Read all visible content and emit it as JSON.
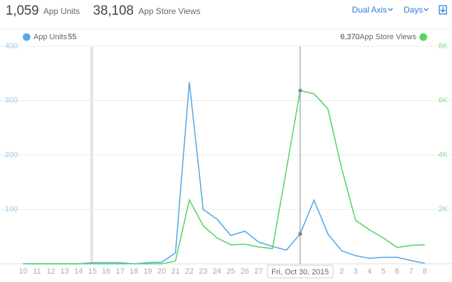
{
  "header": {
    "totals": [
      {
        "value": "1,059",
        "label": "App Units"
      },
      {
        "value": "38,108",
        "label": "App Store Views"
      }
    ],
    "controls": [
      "Dual Axis",
      "Days"
    ]
  },
  "chart_data": {
    "type": "line",
    "categories": [
      "10",
      "11",
      "12",
      "13",
      "14",
      "15",
      "16",
      "17",
      "18",
      "19",
      "20",
      "21",
      "22",
      "23",
      "24",
      "25",
      "26",
      "27",
      null,
      null,
      "Fri, Oct 30, 2015",
      null,
      null,
      "2",
      "3",
      "4",
      "5",
      "6",
      "7",
      "8"
    ],
    "series": [
      {
        "name": "App Units",
        "color": "#5aaae6",
        "values": [
          0,
          0,
          0,
          0,
          0,
          2,
          2,
          2,
          0,
          2,
          3,
          20,
          334,
          100,
          82,
          52,
          60,
          40,
          32,
          25,
          55,
          117,
          55,
          24,
          15,
          10,
          12,
          12,
          6,
          1
        ]
      },
      {
        "name": "App Store Views",
        "color": "#5ad46a",
        "axis": "y2",
        "values": [
          0,
          0,
          0,
          0,
          0,
          0,
          0,
          0,
          0,
          0,
          0,
          100,
          2350,
          1400,
          950,
          700,
          720,
          620,
          560,
          3450,
          6370,
          6250,
          5700,
          3500,
          1600,
          1250,
          950,
          600,
          680,
          700
        ],
        "value_labels": [
          null,
          null,
          null,
          null,
          null,
          null,
          null,
          null,
          null,
          null,
          null,
          null,
          null,
          null,
          null,
          null,
          null,
          null,
          null,
          null,
          "6,370",
          null,
          null,
          null,
          null,
          null,
          null,
          null,
          null,
          null
        ]
      }
    ],
    "ylim": [
      0,
      400
    ],
    "yticks": [
      100,
      200,
      300,
      400
    ],
    "y2lim": [
      0,
      8000
    ],
    "y2ticks": [
      {
        "value": 2000,
        "label": "2K"
      },
      {
        "value": 4000,
        "label": "4K"
      },
      {
        "value": 6000,
        "label": "6K"
      },
      {
        "value": 8000,
        "label": "8K"
      }
    ],
    "grid": true
  }
}
